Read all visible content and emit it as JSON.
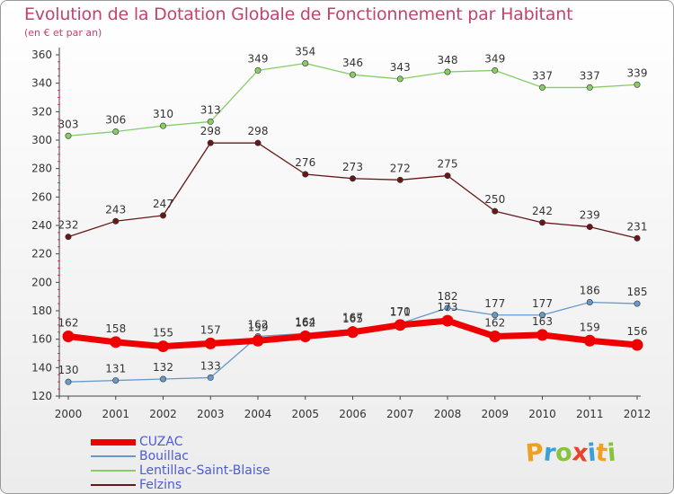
{
  "chart_data": {
    "type": "line",
    "title": "Evolution de la Dotation Globale de Fonctionnement par Habitant",
    "subtitle": "(en € et par an)",
    "xlabel": "",
    "ylabel": "",
    "x": [
      "2000",
      "2001",
      "2002",
      "2003",
      "2004",
      "2005",
      "2006",
      "2007",
      "2008",
      "2009",
      "2010",
      "2011",
      "2012"
    ],
    "ylim": [
      120,
      360
    ],
    "yticks": [
      120,
      140,
      160,
      180,
      200,
      220,
      240,
      260,
      280,
      300,
      320,
      340,
      360
    ],
    "grid": false,
    "legend": "bottom-left",
    "series": [
      {
        "name": "CUZAC",
        "color": "#ee0000",
        "values": [
          162,
          158,
          155,
          157,
          159,
          162,
          165,
          170,
          173,
          162,
          163,
          159,
          156
        ]
      },
      {
        "name": "Bouillac",
        "color": "#6699cc",
        "values": [
          130,
          131,
          132,
          133,
          162,
          164,
          167,
          171,
          182,
          177,
          177,
          186,
          185
        ]
      },
      {
        "name": "Lentillac-Saint-Blaise",
        "color": "#88cc66",
        "values": [
          303,
          306,
          310,
          313,
          349,
          354,
          346,
          343,
          348,
          349,
          337,
          337,
          339
        ]
      },
      {
        "name": "Felzins",
        "color": "#661818",
        "values": [
          232,
          243,
          247,
          298,
          298,
          276,
          273,
          272,
          275,
          250,
          242,
          239,
          231
        ]
      }
    ]
  },
  "brand": {
    "letters": [
      "P",
      "r",
      "o",
      "x",
      "i",
      "t",
      "i"
    ],
    "colors": [
      "#f0a020",
      "#3aa0d8",
      "#86c43b",
      "#e8442a",
      "#3aa0d8",
      "#f0a020",
      "#86c43b"
    ]
  }
}
